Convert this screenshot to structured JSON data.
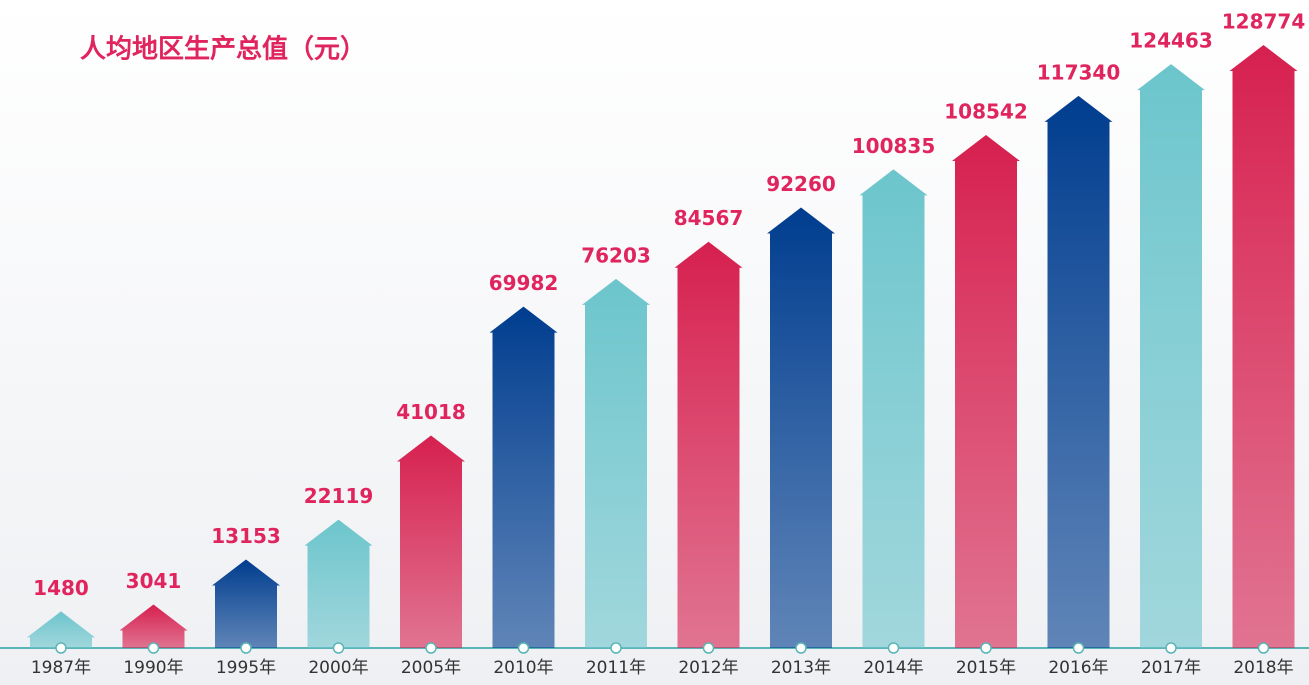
{
  "chart_data": {
    "type": "bar",
    "title": "人均地区生产总值（元）",
    "categories": [
      "1987年",
      "1990年",
      "1995年",
      "2000年",
      "2005年",
      "2010年",
      "2011年",
      "2012年",
      "2013年",
      "2014年",
      "2015年",
      "2016年",
      "2017年",
      "2018年"
    ],
    "values": [
      1480,
      3041,
      13153,
      22119,
      41018,
      69982,
      76203,
      84567,
      92260,
      100835,
      108542,
      117340,
      124463,
      128774
    ],
    "colors": [
      "#6cc5cc",
      "#d6204f",
      "#003d8f",
      "#6cc5cc",
      "#d6204f",
      "#003d8f",
      "#6cc5cc",
      "#d6204f",
      "#003d8f",
      "#6cc5cc",
      "#d6204f",
      "#003d8f",
      "#6cc5cc",
      "#d6204f"
    ]
  }
}
